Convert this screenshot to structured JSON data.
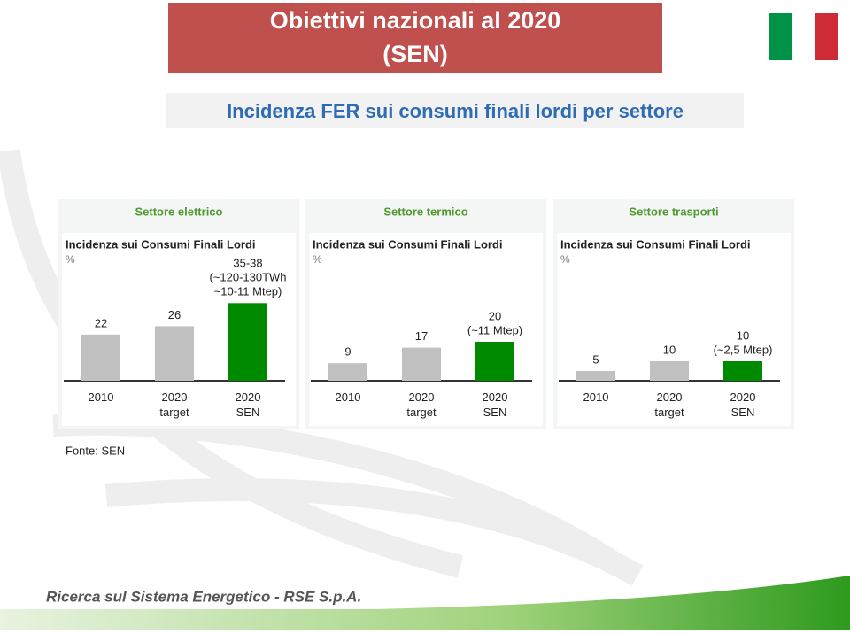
{
  "header": {
    "title": [
      "Obiettivi nazionali al 2020",
      "(SEN)"
    ]
  },
  "heading": "Incidenza FER sui consumi finali lordi per settore",
  "chart_data": [
    {
      "type": "bar",
      "title": "Settore elettrico",
      "subtitle": "Incidenza sui Consumi Finali Lordi",
      "unit": "%",
      "categories": [
        "2010",
        "2020 target",
        "2020 SEN"
      ],
      "values": [
        22,
        26,
        37
      ],
      "value_labels": [
        "22",
        "26",
        "35-38"
      ],
      "value_notes": [
        null,
        null,
        [
          "(~120-130TWh",
          "~10-11 Mtep)"
        ]
      ],
      "colors": [
        "#c0c0c0",
        "#c0c0c0",
        "#008a00"
      ]
    },
    {
      "type": "bar",
      "title": "Settore termico",
      "subtitle": "Incidenza sui Consumi Finali Lordi",
      "unit": "%",
      "categories": [
        "2010",
        "2020 target",
        "2020 SEN"
      ],
      "values": [
        9,
        17,
        20
      ],
      "value_labels": [
        "9",
        "17",
        "20"
      ],
      "value_notes": [
        null,
        null,
        [
          "(~11 Mtep)"
        ]
      ],
      "colors": [
        "#c0c0c0",
        "#c0c0c0",
        "#008a00"
      ]
    },
    {
      "type": "bar",
      "title": "Settore trasporti",
      "subtitle": "Incidenza sui Consumi Finali Lordi",
      "unit": "%",
      "categories": [
        "2010",
        "2020 target",
        "2020 SEN"
      ],
      "values": [
        5,
        10,
        10
      ],
      "value_labels": [
        "5",
        "10",
        "10"
      ],
      "value_notes": [
        null,
        null,
        [
          "(~2,5 Mtep)"
        ]
      ],
      "colors": [
        "#c0c0c0",
        "#c0c0c0",
        "#008a00"
      ]
    }
  ],
  "source": "Fonte: SEN",
  "footer": "Ricerca sul Sistema Energetico - RSE S.p.A."
}
